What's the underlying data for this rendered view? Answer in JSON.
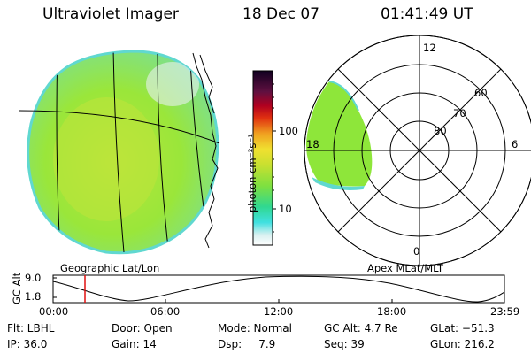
{
  "header": {
    "instrument": "Ultraviolet Imager",
    "date": "18 Dec 07",
    "time": "01:41:49 UT"
  },
  "colorbar": {
    "unit_label": "photon cm⁻²s⁻¹",
    "ticks": [
      "100",
      "10"
    ],
    "scale": "log"
  },
  "left_panel": {
    "caption": "Geographic Lat/Lon"
  },
  "right_panel": {
    "caption": "Apex MLat/MLT",
    "mlt_labels": [
      "12",
      "18",
      "6",
      "0"
    ],
    "mlat_labels": [
      "60",
      "70",
      "80"
    ]
  },
  "altitude_plot": {
    "ylabel": "GC Alt",
    "yticks": [
      "9.0",
      "1.8"
    ],
    "xticks": [
      "00:00",
      "06:00",
      "12:00",
      "18:00",
      "23:59"
    ],
    "current_time_hours": 1.7
  },
  "info_rows": [
    {
      "flt": "Flt: LBHL",
      "door": "Door: Open",
      "mode": "Mode: Normal",
      "gcalt": "GC Alt: 4.7 Re",
      "glat": "GLat: −51.3"
    },
    {
      "ip": "IP: 36.0",
      "gain": "Gain: 14",
      "dsp": "Dsp:     7.9",
      "seq": "Seq: 39",
      "glon": "GLon: 216.2"
    }
  ],
  "colors": {
    "aurora_green": "#8ee63a",
    "aurora_yellow": "#c8e63a",
    "cyan_edge": "#5fe0d8",
    "marker": "#e01010"
  }
}
